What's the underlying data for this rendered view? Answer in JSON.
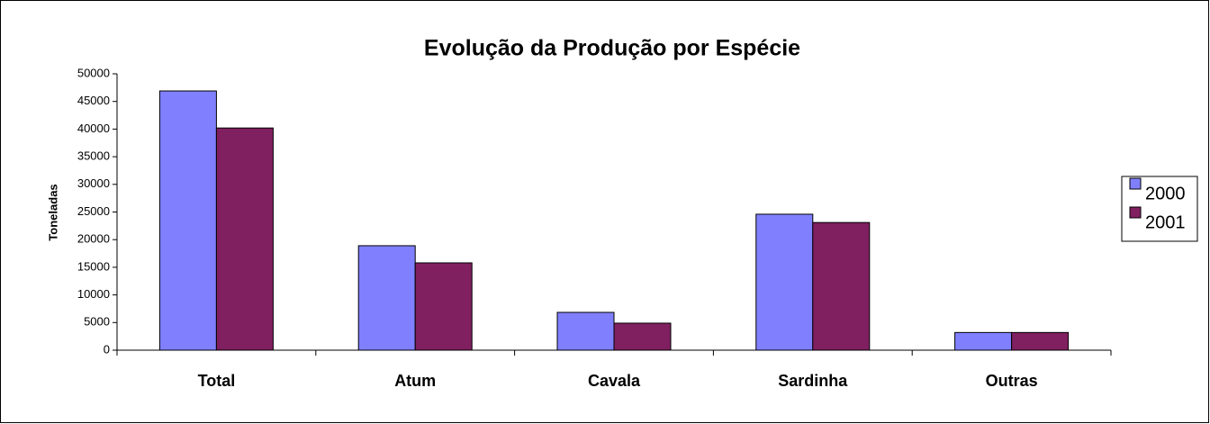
{
  "chart_data": {
    "type": "bar",
    "title": "Evolução da Produção por Espécie",
    "ylabel": "Toneladas",
    "categories": [
      "Total",
      "Atum",
      "Cavala",
      "Sardinha",
      "Outras"
    ],
    "series": [
      {
        "name": "2000",
        "color": "#8080ff",
        "values": [
          46900,
          18900,
          6840,
          24600,
          3200
        ]
      },
      {
        "name": "2001",
        "color": "#802060",
        "values": [
          40200,
          15800,
          4890,
          23100,
          3200
        ]
      }
    ],
    "ylim": [
      0,
      50000
    ],
    "yticks": [
      0,
      5000,
      10000,
      15000,
      20000,
      25000,
      30000,
      35000,
      40000,
      45000,
      50000
    ],
    "legend": "right"
  }
}
